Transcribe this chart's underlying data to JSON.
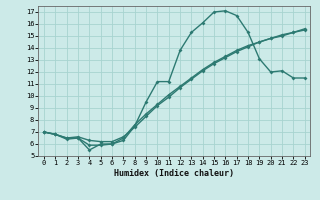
{
  "xlabel": "Humidex (Indice chaleur)",
  "xlim": [
    -0.5,
    23.5
  ],
  "ylim": [
    5,
    17.5
  ],
  "xticks": [
    0,
    1,
    2,
    3,
    4,
    5,
    6,
    7,
    8,
    9,
    10,
    11,
    12,
    13,
    14,
    15,
    16,
    17,
    18,
    19,
    20,
    21,
    22,
    23
  ],
  "yticks": [
    5,
    6,
    7,
    8,
    9,
    10,
    11,
    12,
    13,
    14,
    15,
    16,
    17
  ],
  "bg_color": "#cceae8",
  "grid_color": "#a8d4d0",
  "line_color": "#2d7a72",
  "line1_x": [
    0,
    1,
    2,
    3,
    4,
    5,
    6,
    7,
    8,
    9,
    10,
    11,
    12,
    13,
    14,
    15,
    16,
    17,
    18,
    19,
    20,
    21,
    22,
    23
  ],
  "line1_y": [
    7.0,
    6.8,
    6.4,
    6.5,
    5.5,
    6.0,
    6.0,
    6.3,
    7.5,
    9.5,
    11.2,
    11.2,
    13.8,
    15.3,
    16.1,
    17.0,
    17.1,
    16.7,
    15.3,
    13.1,
    12.0,
    12.1,
    11.5,
    11.5
  ],
  "line2_x": [
    0,
    1,
    2,
    3,
    4,
    5,
    6,
    7,
    8,
    9,
    10,
    11,
    12,
    13,
    14,
    15,
    16,
    17,
    18,
    19,
    20,
    21,
    22,
    23
  ],
  "line2_y": [
    7.0,
    6.8,
    6.5,
    6.5,
    5.9,
    5.9,
    6.0,
    6.5,
    7.6,
    8.5,
    9.3,
    10.1,
    10.8,
    11.5,
    12.2,
    12.8,
    13.3,
    13.8,
    14.2,
    14.5,
    14.8,
    15.0,
    15.3,
    15.5
  ],
  "line3_x": [
    0,
    1,
    2,
    3,
    4,
    5,
    6,
    7,
    8,
    9,
    10,
    11,
    12,
    13,
    14,
    15,
    16,
    17,
    18,
    19,
    20,
    21,
    22,
    23
  ],
  "line3_y": [
    7.0,
    6.8,
    6.5,
    6.6,
    6.3,
    6.2,
    6.2,
    6.6,
    7.4,
    8.3,
    9.2,
    9.9,
    10.7,
    11.4,
    12.1,
    12.7,
    13.2,
    13.7,
    14.1,
    14.5,
    14.8,
    15.1,
    15.3,
    15.6
  ],
  "marker": "D",
  "marker_size": 2.0,
  "line_width": 1.0
}
